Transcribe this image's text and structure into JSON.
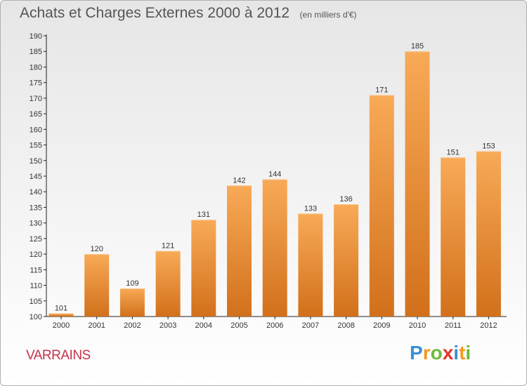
{
  "chart_data": {
    "type": "bar",
    "title": "Achats et Charges Externes 2000 à 2012",
    "subtitle": "(en milliers d'€)",
    "categories": [
      "2000",
      "2001",
      "2002",
      "2003",
      "2004",
      "2005",
      "2006",
      "2007",
      "2008",
      "2009",
      "2010",
      "2011",
      "2012"
    ],
    "values": [
      101,
      120,
      109,
      121,
      131,
      142,
      144,
      133,
      136,
      171,
      185,
      151,
      153
    ],
    "ylim": [
      100,
      190
    ],
    "ytick_step": 5,
    "xlabel": "",
    "ylabel": "",
    "grid": false,
    "legend": "none",
    "colors": {
      "bar_top": "#f8aa57",
      "bar_bottom": "#d2701b",
      "axis": "#222222",
      "label": "#333333"
    }
  },
  "footer": {
    "commune": "VARRAINS",
    "logo_letters": [
      {
        "char": "P",
        "color": "#3a8fd6"
      },
      {
        "char": "r",
        "color": "#f39a1e"
      },
      {
        "char": "o",
        "color": "#6dbb38"
      },
      {
        "char": "x",
        "color": "#e6332a"
      },
      {
        "char": "i",
        "color": "#3a8fd6"
      },
      {
        "char": "t",
        "color": "#f39a1e"
      },
      {
        "char": "i",
        "color": "#6dbb38"
      }
    ]
  }
}
